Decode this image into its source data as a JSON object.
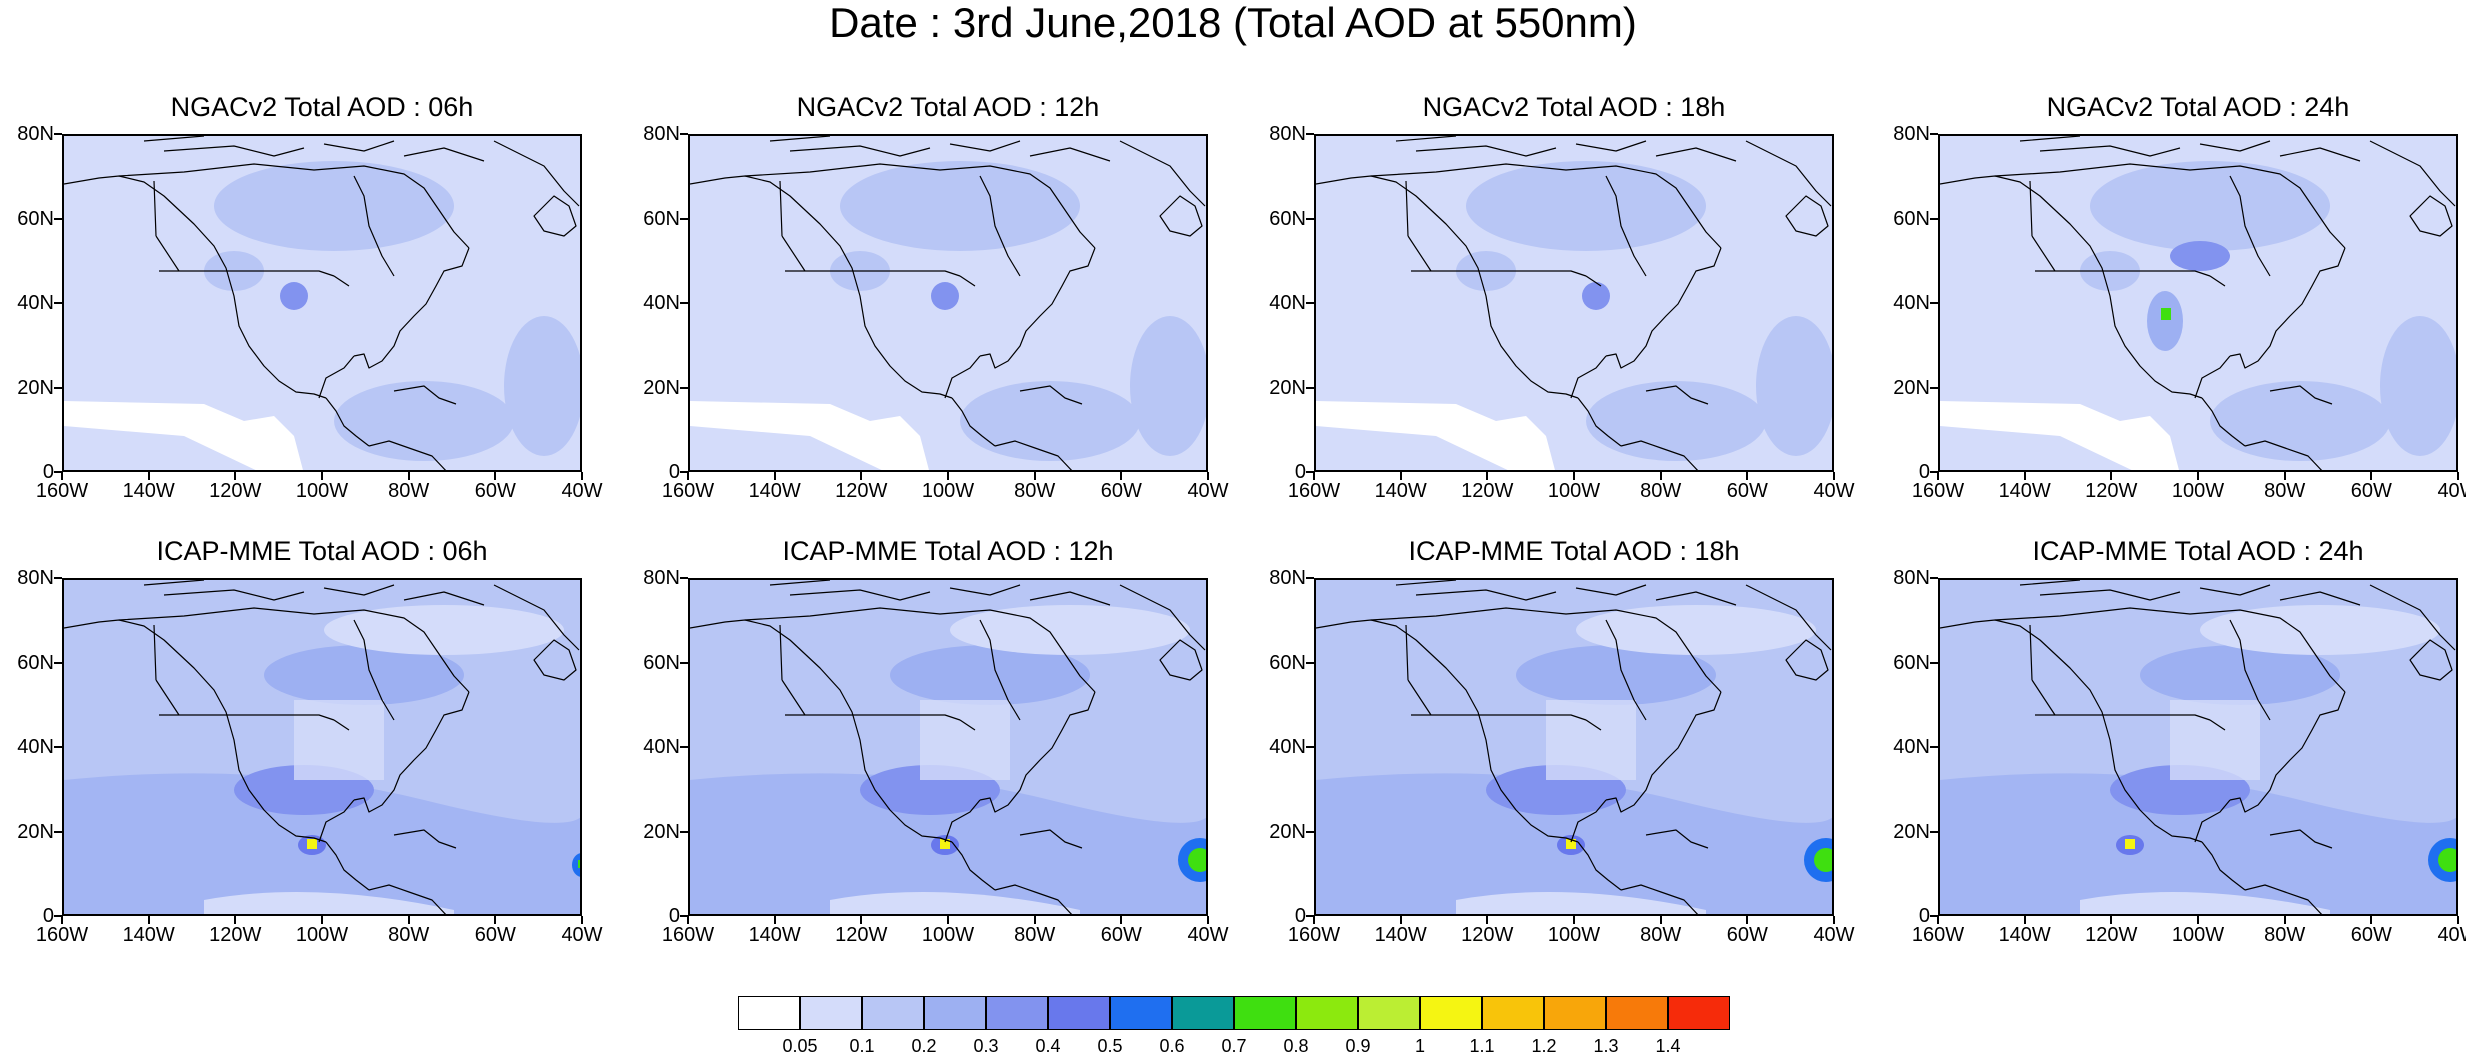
{
  "title": "Date : 3rd June,2018 (Total AOD at 550nm)",
  "lat_labels": [
    "80N",
    "60N",
    "40N",
    "20N",
    "0"
  ],
  "lon_labels": [
    "160W",
    "140W",
    "120W",
    "100W",
    "80W",
    "60W",
    "40W"
  ],
  "panels": [
    {
      "title": "NGACv2 Total AOD : 06h",
      "model": "NGACv2",
      "hour": "06h"
    },
    {
      "title": "NGACv2 Total AOD : 12h",
      "model": "NGACv2",
      "hour": "12h"
    },
    {
      "title": "NGACv2 Total AOD : 18h",
      "model": "NGACv2",
      "hour": "18h"
    },
    {
      "title": "NGACv2 Total AOD : 24h",
      "model": "NGACv2",
      "hour": "24h"
    },
    {
      "title": "ICAP-MME Total AOD : 06h",
      "model": "ICAP-MME",
      "hour": "06h"
    },
    {
      "title": "ICAP-MME Total AOD : 12h",
      "model": "ICAP-MME",
      "hour": "12h"
    },
    {
      "title": "ICAP-MME Total AOD : 18h",
      "model": "ICAP-MME",
      "hour": "18h"
    },
    {
      "title": "ICAP-MME Total AOD : 24h",
      "model": "ICAP-MME",
      "hour": "24h"
    }
  ],
  "colorbar": {
    "labels": [
      "0.05",
      "0.1",
      "0.2",
      "0.3",
      "0.4",
      "0.5",
      "0.6",
      "0.7",
      "0.8",
      "0.9",
      "1",
      "1.1",
      "1.2",
      "1.3",
      "1.4"
    ],
    "colors": [
      "#ffffff",
      "#d4dcfa",
      "#b8c6f5",
      "#9db0f2",
      "#8293ef",
      "#6878ec",
      "#1f6ff0",
      "#0a9a98",
      "#3fdf10",
      "#8ce90e",
      "#bbee33",
      "#f5f512",
      "#f8c40a",
      "#f8a60a",
      "#f77a0a",
      "#f62b0a"
    ]
  }
}
